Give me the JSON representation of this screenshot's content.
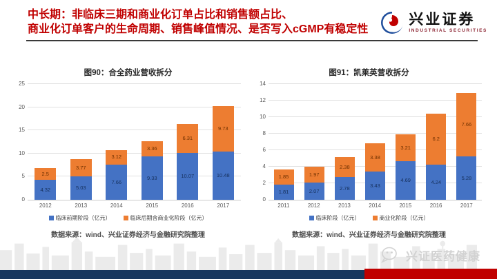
{
  "header": {
    "title_line1": "中长期：非临床三期和商业化订单占比和销售额占比、",
    "title_line2": "商业化订单客户的生命周期、销售峰值情况、是否写入cGMP有稳定性",
    "logo": {
      "name": "兴业证券",
      "subtitle": "INDUSTRIAL SECURITIES"
    }
  },
  "chart_data": [
    {
      "type": "bar",
      "stacked": true,
      "title": "图90：合全药业营收拆分",
      "categories": [
        "2012",
        "2013",
        "2014",
        "2015",
        "2016",
        "2017"
      ],
      "series": [
        {
          "name": "临床前期阶段（亿元）",
          "color": "#4472c4",
          "values": [
            4.32,
            5.03,
            7.66,
            9.33,
            10.07,
            10.48
          ]
        },
        {
          "name": "临床后期含商业化阶段（亿元）",
          "color": "#ed7d31",
          "values": [
            2.5,
            3.77,
            3.12,
            3.36,
            6.31,
            9.73
          ]
        }
      ],
      "ylim": [
        0,
        25
      ],
      "yticks": [
        0,
        5,
        10,
        15,
        20,
        25
      ],
      "grid": true,
      "legend_position": "bottom",
      "source": "数据来源：wind、兴业证券经济与金融研究院整理"
    },
    {
      "type": "bar",
      "stacked": true,
      "title": "图91：凯莱英营收拆分",
      "categories": [
        "2011",
        "2012",
        "2013",
        "2014",
        "2015",
        "2016",
        "2017"
      ],
      "series": [
        {
          "name": "临床阶段（亿元）",
          "color": "#4472c4",
          "values": [
            1.81,
            2.07,
            2.78,
            3.43,
            4.69,
            4.24,
            5.28
          ]
        },
        {
          "name": "商业化阶段（亿元）",
          "color": "#ed7d31",
          "values": [
            1.85,
            1.97,
            2.38,
            3.38,
            3.21,
            6.2,
            7.66
          ]
        }
      ],
      "ylim": [
        0,
        14
      ],
      "yticks": [
        0,
        2,
        4,
        6,
        8,
        10,
        12,
        14
      ],
      "grid": true,
      "legend_position": "bottom",
      "source": "数据来源：wind、兴业证券经济与金融研究院整理"
    }
  ],
  "footer": {
    "wechat_name": "兴证医药健康"
  },
  "colors": {
    "title_red": "#c00000",
    "bar_blue": "#4472c4",
    "bar_orange": "#ed7d31",
    "footer_navy": "#17375e",
    "footer_red": "#c00000"
  }
}
